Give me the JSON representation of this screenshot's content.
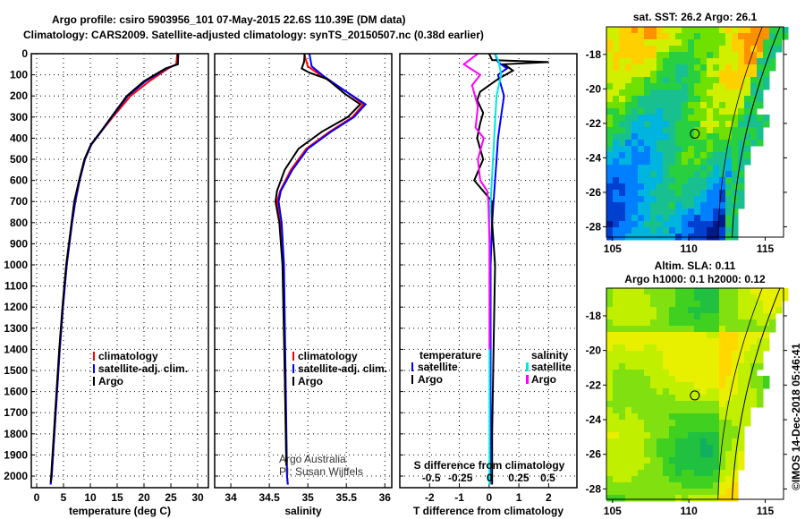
{
  "title_line1": "Argo profile: csiro 5903956_101 07-May-2015 22.6S 110.39E (DM data)",
  "title_line2": "Climatology: CARS2009. Satellite-adjusted climatology: synTS_20150507.nc (0.38d earlier)",
  "credit": "©IMOS 14-Dec-2018 05:46:41",
  "colors": {
    "climatology": "#ff0000",
    "satellite": "#0000ff",
    "argo": "#000000",
    "salinity_satellite": "#00e5e5",
    "salinity_argo": "#ff00ff"
  },
  "chart_data": [
    {
      "type": "line",
      "id": "temperature",
      "xlabel": "temperature (deg C)",
      "ylabel": "",
      "xlim": [
        -1,
        32
      ],
      "ylim": [
        2055,
        0
      ],
      "xticks": [
        "0",
        "5",
        "10",
        "15",
        "20",
        "25",
        "30"
      ],
      "yticks": [
        "0",
        "100",
        "200",
        "300",
        "400",
        "500",
        "600",
        "700",
        "800",
        "900",
        "1000",
        "1100",
        "1200",
        "1300",
        "1400",
        "1500",
        "1600",
        "1700",
        "1800",
        "1900",
        "2000"
      ],
      "grid": true,
      "legend": [
        "climatology",
        "satellite-adj. clim.",
        "Argo"
      ],
      "legend_position": "lower-right",
      "series": [
        {
          "name": "climatology",
          "color": "#ff0000",
          "x": [
            26.2,
            26.0,
            24.5,
            21,
            17.5,
            14.2,
            12,
            10.2,
            9,
            8,
            7.2,
            6.6,
            5.6,
            4.9,
            4.3,
            3.8,
            3.3,
            2.8,
            2.6
          ],
          "y": [
            0,
            50,
            70,
            130,
            200,
            300,
            370,
            430,
            500,
            600,
            700,
            800,
            1000,
            1200,
            1400,
            1600,
            1800,
            2000,
            2040
          ]
        },
        {
          "name": "satellite-adj. clim.",
          "color": "#0000ff",
          "x": [
            26.4,
            26.3,
            24.2,
            20.3,
            17,
            14,
            12,
            10.2,
            9,
            8,
            7.2,
            6.6,
            5.6,
            4.9,
            4.3,
            3.8,
            3.3,
            2.8,
            2.6
          ],
          "y": [
            0,
            50,
            70,
            130,
            200,
            300,
            370,
            430,
            500,
            600,
            700,
            800,
            1000,
            1200,
            1400,
            1600,
            1800,
            2000,
            2040
          ]
        },
        {
          "name": "Argo",
          "color": "#000000",
          "x": [
            26.3,
            26.3,
            24,
            20,
            16.8,
            13.9,
            11.9,
            10.1,
            8.9,
            7.9,
            7.0,
            6.5,
            5.5,
            4.8,
            4.2,
            3.7,
            3.2,
            2.7,
            2.6
          ],
          "y": [
            0,
            50,
            70,
            130,
            200,
            300,
            370,
            430,
            500,
            600,
            700,
            800,
            1000,
            1200,
            1400,
            1600,
            1800,
            2000,
            2030
          ]
        }
      ]
    },
    {
      "type": "line",
      "id": "salinity",
      "xlabel": "salinity",
      "xlim": [
        33.79,
        36.09
      ],
      "ylim": [
        2055,
        0
      ],
      "xticks": [
        "34",
        "34.5",
        "35",
        "35.5",
        "36"
      ],
      "grid": true,
      "legend": [
        "climatology",
        "satellite-adj. clim.",
        "Argo"
      ],
      "legend_position": "lower-right",
      "annotation": [
        "Argo Australia",
        "PI: Susan Wijffels"
      ],
      "series": [
        {
          "name": "climatology",
          "color": "#ff0000",
          "x": [
            34.95,
            35.0,
            35.2,
            35.5,
            35.72,
            35.58,
            35.28,
            34.98,
            34.78,
            34.64,
            34.6,
            34.64,
            34.68,
            34.7,
            34.73,
            34.74
          ],
          "y": [
            0,
            60,
            110,
            180,
            240,
            300,
            370,
            450,
            550,
            650,
            700,
            800,
            1000,
            1500,
            2000,
            2040
          ]
        },
        {
          "name": "satellite-adj. clim.",
          "color": "#0000ff",
          "x": [
            35.02,
            35.05,
            35.22,
            35.5,
            35.75,
            35.6,
            35.3,
            35.0,
            34.8,
            34.65,
            34.62,
            34.66,
            34.69,
            34.71,
            34.73,
            34.74
          ],
          "y": [
            0,
            60,
            110,
            180,
            240,
            300,
            370,
            450,
            550,
            650,
            700,
            800,
            1000,
            1500,
            2000,
            2040
          ]
        },
        {
          "name": "Argo",
          "color": "#000000",
          "x": [
            34.96,
            34.95,
            34.92,
            35.02,
            35.25,
            35.48,
            35.68,
            35.52,
            35.18,
            34.88,
            34.7,
            34.6,
            34.58,
            34.63,
            34.67,
            34.7,
            34.72
          ],
          "y": [
            0,
            40,
            70,
            90,
            120,
            190,
            240,
            300,
            370,
            450,
            550,
            650,
            700,
            800,
            1000,
            1500,
            1950
          ]
        }
      ]
    },
    {
      "type": "line",
      "id": "differences",
      "xlabel": "T difference from climatology",
      "x2label": "S difference from climatology",
      "xlim": [
        -3.0,
        2.95
      ],
      "x2lim": [
        -0.77,
        0.75
      ],
      "ylim": [
        2055,
        0
      ],
      "xticks": [
        "-2",
        "-1",
        "0",
        "1",
        "2"
      ],
      "x2ticks": [
        "-0.5",
        "-0.25",
        "0",
        "0.25",
        "0.5"
      ],
      "grid": true,
      "legend_temperature_title": "temperature",
      "legend_salinity_title": "salinity",
      "legend_temperature": [
        "satellite",
        "Argo"
      ],
      "legend_salinity": [
        "satellite",
        "Argo"
      ],
      "series": [
        {
          "name": "T satellite",
          "axis": "T",
          "color": "#0000ff",
          "x": [
            0.2,
            0.3,
            0.6,
            0.3,
            0.5,
            0.4,
            0.3,
            0.25,
            0.2,
            0.15,
            0.1,
            0.05,
            0.05,
            0.05,
            0.03
          ],
          "y": [
            0,
            40,
            70,
            100,
            200,
            300,
            400,
            500,
            600,
            700,
            800,
            1000,
            1400,
            1800,
            2040
          ]
        },
        {
          "name": "T Argo",
          "axis": "T",
          "color": "#000000",
          "x": [
            0.0,
            0.1,
            2.0,
            0.5,
            0.8,
            0.3,
            -0.3,
            -0.4,
            -0.2,
            -0.3,
            -0.4,
            -0.3,
            -0.2,
            -0.5,
            -0.2,
            0.1,
            0.1,
            0.2,
            0.15,
            0.1,
            0.1
          ],
          "y": [
            0,
            30,
            40,
            50,
            80,
            120,
            180,
            220,
            280,
            330,
            400,
            450,
            500,
            600,
            650,
            700,
            800,
            1000,
            1400,
            1800,
            2040
          ]
        },
        {
          "name": "S satellite",
          "axis": "S",
          "color": "#00e5e5",
          "x": [
            0.05,
            0.08,
            0.1,
            0.06,
            0.04,
            0.02,
            0.0,
            0.0,
            0.0,
            0.0
          ],
          "y": [
            0,
            40,
            100,
            200,
            400,
            600,
            800,
            1200,
            1600,
            2040
          ]
        },
        {
          "name": "S Argo",
          "axis": "S",
          "color": "#ff00ff",
          "x": [
            -0.1,
            -0.22,
            -0.08,
            -0.15,
            -0.1,
            -0.12,
            -0.05,
            -0.1,
            -0.08,
            -0.02,
            -0.01,
            0.0,
            0.0
          ],
          "y": [
            0,
            50,
            100,
            150,
            250,
            350,
            400,
            500,
            600,
            650,
            700,
            900,
            1400
          ]
        }
      ]
    },
    {
      "type": "heatmap",
      "id": "sst_map",
      "title": "sat. SST: 26.2 Argo: 26.1",
      "xticks": [
        "105",
        "110",
        "115"
      ],
      "yticks": [
        "-18",
        "-20",
        "-22",
        "-24",
        "-26",
        "-28"
      ],
      "xlim": [
        104.6,
        116.2
      ],
      "ylim": [
        -28.6,
        -16.4
      ],
      "marker": {
        "lon": 110.39,
        "lat": -22.6
      }
    },
    {
      "type": "heatmap",
      "id": "sla_map",
      "title": "Altim. SLA: 0.11",
      "subtitle": "Argo h1000: 0.1 h2000: 0.12",
      "xticks": [
        "105",
        "110",
        "115"
      ],
      "yticks": [
        "-18",
        "-20",
        "-22",
        "-24",
        "-26",
        "-28"
      ],
      "xlim": [
        104.6,
        116.2
      ],
      "ylim": [
        -28.6,
        -16.4
      ],
      "marker": {
        "lon": 110.39,
        "lat": -22.6
      }
    }
  ]
}
